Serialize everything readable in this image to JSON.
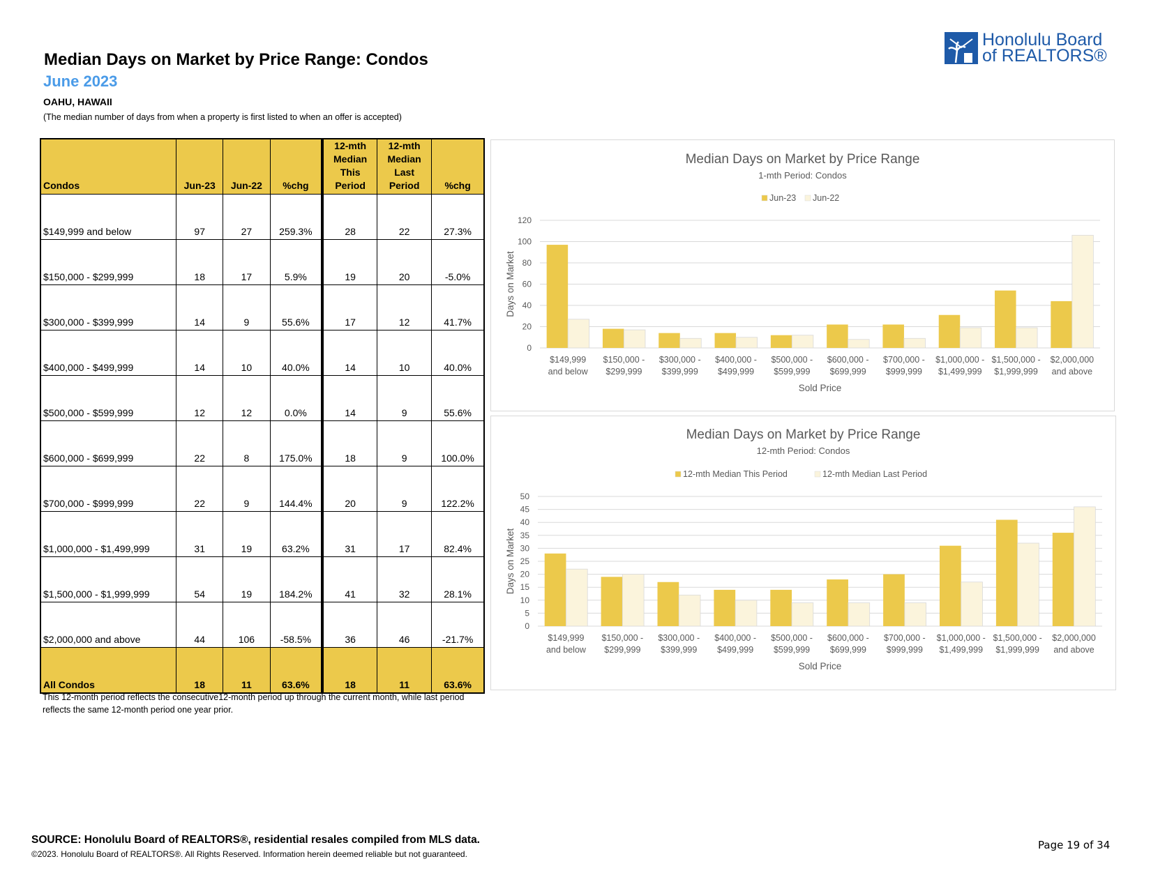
{
  "header": {
    "title": "Median Days on Market by Price Range: Condos",
    "subtitle": "June 2023",
    "location": "OAHU, HAWAII",
    "description": "(The median number of days from when a property is first listed to when an offer is accepted)"
  },
  "logo": {
    "line1": "Honolulu Board",
    "line2": "of REALTORS®"
  },
  "table": {
    "columns": [
      "Condos",
      "Jun-23",
      "Jun-22",
      "%chg",
      "12-mth Median This Period",
      "12-mth Median Last Period",
      "%chg"
    ],
    "rows": [
      [
        "$149,999 and below",
        "97",
        "27",
        "259.3%",
        "28",
        "22",
        "27.3%"
      ],
      [
        "$150,000 - $299,999",
        "18",
        "17",
        "5.9%",
        "19",
        "20",
        "-5.0%"
      ],
      [
        "$300,000 - $399,999",
        "14",
        "9",
        "55.6%",
        "17",
        "12",
        "41.7%"
      ],
      [
        "$400,000 - $499,999",
        "14",
        "10",
        "40.0%",
        "14",
        "10",
        "40.0%"
      ],
      [
        "$500,000 - $599,999",
        "12",
        "12",
        "0.0%",
        "14",
        "9",
        "55.6%"
      ],
      [
        "$600,000 - $699,999",
        "22",
        "8",
        "175.0%",
        "18",
        "9",
        "100.0%"
      ],
      [
        "$700,000 - $999,999",
        "22",
        "9",
        "144.4%",
        "20",
        "9",
        "122.2%"
      ],
      [
        "$1,000,000 - $1,499,999",
        "31",
        "19",
        "63.2%",
        "31",
        "17",
        "82.4%"
      ],
      [
        "$1,500,000 - $1,999,999",
        "54",
        "19",
        "184.2%",
        "41",
        "32",
        "28.1%"
      ],
      [
        "$2,000,000 and above",
        "44",
        "106",
        "-58.5%",
        "36",
        "46",
        "-21.7%"
      ]
    ],
    "total": [
      "All Condos",
      "18",
      "11",
      "63.6%",
      "18",
      "11",
      "63.6%"
    ]
  },
  "footnote": "This 12-month period reflects the consecutive12-month period up through the current month, while last period reflects the same 12-month period one year prior.",
  "chart_data": [
    {
      "type": "bar",
      "title": "Median Days on Market by Price Range",
      "subtitle": "1-mth Period: Condos",
      "xlabel": "Sold Price",
      "ylabel": "Days on Market",
      "ylim": [
        0,
        120
      ],
      "yticks": [
        0,
        20,
        40,
        60,
        80,
        100,
        120
      ],
      "categories": [
        [
          "$149,999",
          "and below"
        ],
        [
          "$150,000 -",
          "$299,999"
        ],
        [
          "$300,000 -",
          "$399,999"
        ],
        [
          "$400,000 -",
          "$499,999"
        ],
        [
          "$500,000 -",
          "$599,999"
        ],
        [
          "$600,000 -",
          "$699,999"
        ],
        [
          "$700,000 -",
          "$999,999"
        ],
        [
          "$1,000,000 -",
          "$1,499,999"
        ],
        [
          "$1,500,000 -",
          "$1,999,999"
        ],
        [
          "$2,000,000",
          "and above"
        ]
      ],
      "series": [
        {
          "name": "Jun-23",
          "color": "#ecc94b",
          "values": [
            97,
            18,
            14,
            14,
            12,
            22,
            22,
            31,
            54,
            44
          ]
        },
        {
          "name": "Jun-22",
          "color": "#fbf4dc",
          "values": [
            27,
            17,
            9,
            10,
            12,
            8,
            9,
            19,
            19,
            106
          ]
        }
      ],
      "legend": "top"
    },
    {
      "type": "bar",
      "title": "Median Days on Market by Price Range",
      "subtitle": "12-mth Period: Condos",
      "xlabel": "Sold Price",
      "ylabel": "Days on Market",
      "ylim": [
        0,
        50
      ],
      "yticks": [
        0,
        5,
        10,
        15,
        20,
        25,
        30,
        35,
        40,
        45,
        50
      ],
      "categories": [
        [
          "$149,999",
          "and below"
        ],
        [
          "$150,000 -",
          "$299,999"
        ],
        [
          "$300,000 -",
          "$399,999"
        ],
        [
          "$400,000 -",
          "$499,999"
        ],
        [
          "$500,000 -",
          "$599,999"
        ],
        [
          "$600,000 -",
          "$699,999"
        ],
        [
          "$700,000 -",
          "$999,999"
        ],
        [
          "$1,000,000 -",
          "$1,499,999"
        ],
        [
          "$1,500,000 -",
          "$1,999,999"
        ],
        [
          "$2,000,000",
          "and above"
        ]
      ],
      "series": [
        {
          "name": "12-mth Median This Period",
          "color": "#ecc94b",
          "values": [
            28,
            19,
            17,
            14,
            14,
            18,
            20,
            31,
            41,
            36
          ]
        },
        {
          "name": "12-mth Median Last Period",
          "color": "#fbf4dc",
          "values": [
            22,
            20,
            12,
            10,
            9,
            9,
            9,
            17,
            32,
            46
          ]
        }
      ],
      "legend": "top"
    }
  ],
  "footer": {
    "source": "SOURCE: Honolulu Board of REALTORS®, residential resales compiled from MLS data.",
    "copyright": "©2023. Honolulu Board of REALTORS®. All Rights Reserved. Information herein deemed reliable but not guaranteed.",
    "page": "Page 19 of 34"
  }
}
